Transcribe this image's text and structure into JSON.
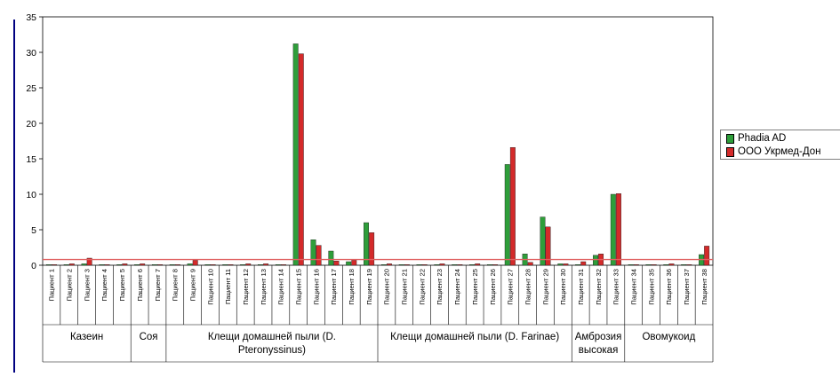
{
  "chart_data": {
    "type": "bar",
    "title": "",
    "xlabel": "",
    "ylabel": "",
    "ylim": [
      0,
      35
    ],
    "yticks": [
      0,
      5,
      10,
      15,
      20,
      25,
      30,
      35
    ],
    "categories": [
      "Пациент 1",
      "Пациент 2",
      "Пациент 3",
      "Пациент 4",
      "Пациент 5",
      "Пациент 6",
      "Пациент 7",
      "Пациент 8",
      "Пациент 9",
      "Пациент 10",
      "Пациент 11",
      "Пациент 12",
      "Пациент 13",
      "Пациент 14",
      "Пациент 15",
      "Пациент 16",
      "Пациент 17",
      "Пациент 18",
      "Пациент 19",
      "Пациент 20",
      "Пациент 21",
      "Пациент 22",
      "Пациент 23",
      "Пациент 24",
      "Пациент 25",
      "Пациент 26",
      "Пациент 27",
      "Пациент 28",
      "Пациент 29",
      "Пациент 30",
      "Пациент 31",
      "Пациент 32",
      "Пациент 33",
      "Пациент 34",
      "Пациент 35",
      "Пациент 36",
      "Пациент 37",
      "Пациент 38"
    ],
    "groups": [
      {
        "label": "Казеин",
        "count": 5
      },
      {
        "label": "Соя",
        "count": 2
      },
      {
        "label": "Клещи домашней пыли (D. Pteronyssinus)",
        "count": 12
      },
      {
        "label": "Клещи домашней пыли (D. Farinae)",
        "count": 11
      },
      {
        "label": "Амброзия высокая",
        "count": 3
      },
      {
        "label": "Овомукоид",
        "count": 5
      }
    ],
    "series": [
      {
        "name": "Phadia AD",
        "color": "#2e9e3a",
        "values": [
          0.1,
          0.1,
          0.2,
          0.1,
          0.1,
          0.1,
          0.1,
          0.1,
          0.2,
          0.1,
          0.1,
          0.1,
          0.1,
          0.1,
          31.2,
          3.6,
          2.0,
          0.5,
          6.0,
          0.1,
          0.1,
          0.1,
          0.1,
          0.1,
          0.1,
          0.1,
          14.2,
          1.6,
          6.8,
          0.2,
          0.1,
          1.4,
          10.0,
          0.1,
          0.1,
          0.1,
          0.1,
          1.5
        ]
      },
      {
        "name": "ООО Укрмед-Дон",
        "color": "#d42a2a",
        "values": [
          0.1,
          0.2,
          1.0,
          0.1,
          0.2,
          0.2,
          0.1,
          0.1,
          0.7,
          0.1,
          0.1,
          0.2,
          0.2,
          0.1,
          29.8,
          2.8,
          0.6,
          0.7,
          4.6,
          0.2,
          0.1,
          0.1,
          0.2,
          0.1,
          0.2,
          0.1,
          16.6,
          0.4,
          5.4,
          0.2,
          0.5,
          1.6,
          10.1,
          0.1,
          0.1,
          0.2,
          0.1,
          2.7
        ]
      }
    ],
    "reference_line": {
      "value": 0.8,
      "color": "#e06060"
    },
    "grid": false,
    "legend": "right"
  }
}
